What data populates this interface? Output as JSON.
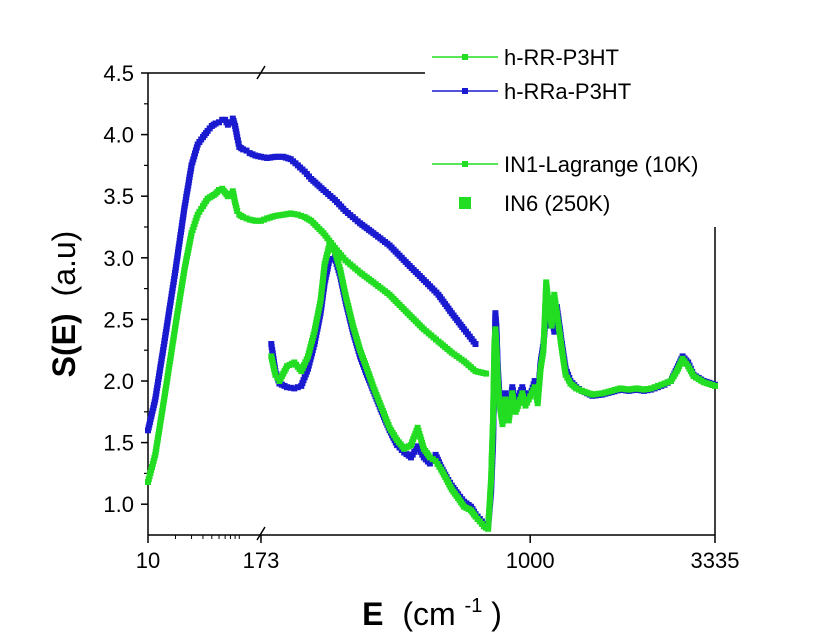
{
  "chart_data": {
    "type": "line",
    "xlabel": "E",
    "xlabel_unit": "(cm",
    "xlabel_unit_exp": "-1",
    "xlabel_unit_close": ")",
    "ylabel": "S(E)",
    "ylabel_unit": "(a.u)",
    "ylim": [
      0.75,
      4.5
    ],
    "yticks": [
      "1.0",
      "1.5",
      "2.0",
      "2.5",
      "3.0",
      "3.5",
      "4.0",
      "4.5"
    ],
    "x_segments": [
      {
        "scale": "log",
        "range": [
          10,
          173
        ],
        "ticks": [
          "10",
          "173"
        ]
      },
      {
        "scale": "log",
        "range": [
          173,
          3335
        ],
        "ticks": [
          "173",
          "1000",
          "3335"
        ]
      }
    ],
    "legend": [
      {
        "label": "h-RR-P3HT",
        "color": "#22dd22",
        "marker": "line-dot"
      },
      {
        "label": "h-RRa-P3HT",
        "color": "#1a1ad0",
        "marker": "line-dot"
      },
      {
        "label": "IN1-Lagrange (10K)",
        "color": "#22dd22",
        "marker": "line-dot"
      },
      {
        "label": "IN6 (250K)",
        "color": "#22dd22",
        "marker": "square"
      }
    ],
    "series": [
      {
        "name": "h-RRa-P3HT (IN6)",
        "color": "#1a1ad0",
        "points": [
          [
            10,
            1.6
          ],
          [
            12,
            1.85
          ],
          [
            15,
            2.3
          ],
          [
            20,
            2.9
          ],
          [
            25,
            3.4
          ],
          [
            30,
            3.75
          ],
          [
            35,
            3.92
          ],
          [
            40,
            3.98
          ],
          [
            45,
            4.03
          ],
          [
            50,
            4.07
          ],
          [
            55,
            4.09
          ],
          [
            60,
            4.1
          ],
          [
            65,
            4.12
          ],
          [
            70,
            4.12
          ],
          [
            75,
            4.08
          ],
          [
            80,
            4.1
          ],
          [
            85,
            4.13
          ],
          [
            90,
            4.07
          ],
          [
            95,
            3.98
          ],
          [
            100,
            3.9
          ],
          [
            110,
            3.88
          ],
          [
            120,
            3.87
          ],
          [
            130,
            3.85
          ],
          [
            150,
            3.83
          ],
          [
            173,
            3.82
          ],
          [
            180,
            3.81
          ],
          [
            190,
            3.82
          ],
          [
            200,
            3.82
          ],
          [
            210,
            3.8
          ],
          [
            220,
            3.75
          ],
          [
            230,
            3.7
          ],
          [
            240,
            3.64
          ],
          [
            260,
            3.55
          ],
          [
            280,
            3.47
          ],
          [
            300,
            3.38
          ],
          [
            330,
            3.28
          ],
          [
            360,
            3.2
          ],
          [
            400,
            3.1
          ],
          [
            450,
            2.95
          ],
          [
            500,
            2.82
          ],
          [
            550,
            2.7
          ],
          [
            600,
            2.55
          ],
          [
            650,
            2.42
          ],
          [
            700,
            2.3
          ]
        ]
      },
      {
        "name": "h-RR-P3HT (IN6)",
        "color": "#22dd22",
        "points": [
          [
            10,
            1.18
          ],
          [
            12,
            1.4
          ],
          [
            15,
            1.85
          ],
          [
            20,
            2.45
          ],
          [
            25,
            2.9
          ],
          [
            30,
            3.2
          ],
          [
            35,
            3.35
          ],
          [
            40,
            3.42
          ],
          [
            45,
            3.48
          ],
          [
            50,
            3.5
          ],
          [
            55,
            3.52
          ],
          [
            60,
            3.55
          ],
          [
            65,
            3.56
          ],
          [
            70,
            3.53
          ],
          [
            75,
            3.5
          ],
          [
            80,
            3.52
          ],
          [
            85,
            3.54
          ],
          [
            90,
            3.45
          ],
          [
            95,
            3.38
          ],
          [
            100,
            3.35
          ],
          [
            110,
            3.33
          ],
          [
            120,
            3.32
          ],
          [
            130,
            3.31
          ],
          [
            150,
            3.3
          ],
          [
            173,
            3.3
          ],
          [
            180,
            3.32
          ],
          [
            190,
            3.34
          ],
          [
            200,
            3.35
          ],
          [
            210,
            3.36
          ],
          [
            220,
            3.35
          ],
          [
            230,
            3.33
          ],
          [
            240,
            3.3
          ],
          [
            260,
            3.2
          ],
          [
            280,
            3.08
          ],
          [
            300,
            2.98
          ],
          [
            330,
            2.88
          ],
          [
            360,
            2.8
          ],
          [
            400,
            2.7
          ],
          [
            450,
            2.55
          ],
          [
            500,
            2.42
          ],
          [
            550,
            2.32
          ],
          [
            600,
            2.23
          ],
          [
            650,
            2.16
          ],
          [
            700,
            2.08
          ],
          [
            750,
            2.06
          ]
        ]
      },
      {
        "name": "h-RRa-P3HT (IN1)",
        "color": "#1a1ad0",
        "points": [
          [
            185,
            2.3
          ],
          [
            190,
            2.08
          ],
          [
            195,
            1.98
          ],
          [
            205,
            1.95
          ],
          [
            215,
            1.94
          ],
          [
            225,
            1.96
          ],
          [
            235,
            2.1
          ],
          [
            245,
            2.3
          ],
          [
            255,
            2.55
          ],
          [
            262,
            2.8
          ],
          [
            270,
            2.98
          ],
          [
            280,
            3.0
          ],
          [
            290,
            2.85
          ],
          [
            300,
            2.65
          ],
          [
            315,
            2.4
          ],
          [
            330,
            2.2
          ],
          [
            345,
            2.05
          ],
          [
            360,
            1.92
          ],
          [
            380,
            1.75
          ],
          [
            400,
            1.6
          ],
          [
            420,
            1.48
          ],
          [
            440,
            1.42
          ],
          [
            460,
            1.38
          ],
          [
            480,
            1.47
          ],
          [
            500,
            1.38
          ],
          [
            520,
            1.33
          ],
          [
            540,
            1.4
          ],
          [
            560,
            1.3
          ],
          [
            580,
            1.22
          ],
          [
            600,
            1.15
          ],
          [
            625,
            1.08
          ],
          [
            650,
            1.02
          ],
          [
            680,
            0.98
          ],
          [
            700,
            0.92
          ],
          [
            720,
            0.88
          ],
          [
            740,
            0.84
          ],
          [
            760,
            0.82
          ],
          [
            775,
            1.1
          ],
          [
            785,
            1.5
          ],
          [
            792,
            2.1
          ],
          [
            797,
            2.55
          ],
          [
            802,
            2.45
          ],
          [
            810,
            2.1
          ],
          [
            820,
            1.85
          ],
          [
            835,
            1.72
          ],
          [
            850,
            1.9
          ],
          [
            870,
            1.75
          ],
          [
            890,
            1.95
          ],
          [
            910,
            1.8
          ],
          [
            930,
            1.88
          ],
          [
            950,
            1.95
          ],
          [
            970,
            1.83
          ],
          [
            990,
            1.9
          ],
          [
            1010,
            1.92
          ],
          [
            1030,
            2.0
          ],
          [
            1050,
            1.85
          ],
          [
            1070,
            2.15
          ],
          [
            1090,
            2.3
          ],
          [
            1110,
            2.55
          ],
          [
            1130,
            2.45
          ],
          [
            1150,
            2.55
          ],
          [
            1170,
            2.4
          ],
          [
            1190,
            2.6
          ],
          [
            1210,
            2.45
          ],
          [
            1230,
            2.3
          ],
          [
            1260,
            2.1
          ],
          [
            1300,
            2.0
          ],
          [
            1350,
            1.95
          ],
          [
            1400,
            1.92
          ],
          [
            1500,
            1.88
          ],
          [
            1600,
            1.89
          ],
          [
            1700,
            1.91
          ],
          [
            1800,
            1.93
          ],
          [
            1900,
            1.92
          ],
          [
            2000,
            1.93
          ],
          [
            2100,
            1.92
          ],
          [
            2200,
            1.93
          ],
          [
            2300,
            1.95
          ],
          [
            2400,
            1.97
          ],
          [
            2500,
            2.0
          ],
          [
            2600,
            2.1
          ],
          [
            2700,
            2.2
          ],
          [
            2800,
            2.15
          ],
          [
            2900,
            2.05
          ],
          [
            3100,
            2.0
          ],
          [
            3335,
            1.97
          ]
        ]
      },
      {
        "name": "h-RR-P3HT (IN1)",
        "color": "#22dd22",
        "points": [
          [
            185,
            2.2
          ],
          [
            190,
            2.05
          ],
          [
            195,
            2.0
          ],
          [
            205,
            2.12
          ],
          [
            215,
            2.15
          ],
          [
            225,
            2.08
          ],
          [
            235,
            2.2
          ],
          [
            245,
            2.4
          ],
          [
            255,
            2.65
          ],
          [
            262,
            2.95
          ],
          [
            270,
            3.1
          ],
          [
            280,
            3.05
          ],
          [
            290,
            2.9
          ],
          [
            300,
            2.7
          ],
          [
            315,
            2.45
          ],
          [
            330,
            2.25
          ],
          [
            345,
            2.1
          ],
          [
            360,
            1.95
          ],
          [
            380,
            1.78
          ],
          [
            400,
            1.62
          ],
          [
            420,
            1.52
          ],
          [
            440,
            1.45
          ],
          [
            460,
            1.48
          ],
          [
            480,
            1.62
          ],
          [
            500,
            1.45
          ],
          [
            520,
            1.38
          ],
          [
            540,
            1.35
          ],
          [
            560,
            1.28
          ],
          [
            580,
            1.2
          ],
          [
            600,
            1.12
          ],
          [
            625,
            1.05
          ],
          [
            650,
            0.98
          ],
          [
            680,
            0.95
          ],
          [
            700,
            0.9
          ],
          [
            720,
            0.86
          ],
          [
            740,
            0.82
          ],
          [
            760,
            0.8
          ],
          [
            775,
            1.2
          ],
          [
            785,
            1.7
          ],
          [
            792,
            2.3
          ],
          [
            797,
            2.42
          ],
          [
            802,
            2.3
          ],
          [
            810,
            2.0
          ],
          [
            820,
            1.8
          ],
          [
            835,
            1.65
          ],
          [
            850,
            1.85
          ],
          [
            870,
            1.68
          ],
          [
            890,
            1.9
          ],
          [
            910,
            1.75
          ],
          [
            930,
            1.82
          ],
          [
            950,
            1.9
          ],
          [
            970,
            1.8
          ],
          [
            990,
            1.85
          ],
          [
            1010,
            1.9
          ],
          [
            1030,
            1.95
          ],
          [
            1050,
            1.82
          ],
          [
            1070,
            2.1
          ],
          [
            1090,
            2.25
          ],
          [
            1110,
            2.8
          ],
          [
            1130,
            2.6
          ],
          [
            1150,
            2.45
          ],
          [
            1170,
            2.7
          ],
          [
            1190,
            2.55
          ],
          [
            1210,
            2.4
          ],
          [
            1230,
            2.25
          ],
          [
            1260,
            2.05
          ],
          [
            1300,
            1.98
          ],
          [
            1350,
            1.94
          ],
          [
            1400,
            1.92
          ],
          [
            1500,
            1.89
          ],
          [
            1600,
            1.9
          ],
          [
            1700,
            1.92
          ],
          [
            1800,
            1.94
          ],
          [
            1900,
            1.93
          ],
          [
            2000,
            1.94
          ],
          [
            2100,
            1.93
          ],
          [
            2200,
            1.94
          ],
          [
            2300,
            1.96
          ],
          [
            2400,
            1.98
          ],
          [
            2500,
            2.0
          ],
          [
            2600,
            2.08
          ],
          [
            2700,
            2.18
          ],
          [
            2800,
            2.12
          ],
          [
            2900,
            2.04
          ],
          [
            3100,
            1.99
          ],
          [
            3335,
            1.96
          ]
        ]
      }
    ]
  }
}
